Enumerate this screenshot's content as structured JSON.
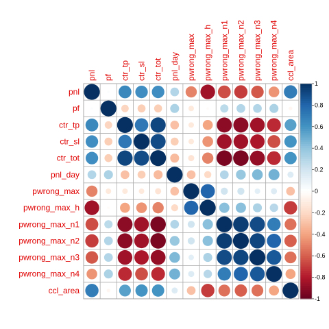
{
  "chart_data": {
    "type": "heatmap",
    "variables": [
      "pnl",
      "pf",
      "ctr_tp",
      "ctr_sl",
      "ctr_tot",
      "pnl_day",
      "pwrong_max",
      "pwrong_max_h",
      "pwrong_max_n1",
      "pwrong_max_n2",
      "pwrong_max_n3",
      "pwrong_max_n4",
      "ccl_area"
    ],
    "matrix": [
      [
        1.0,
        0.02,
        0.65,
        0.62,
        0.62,
        0.3,
        -0.5,
        -0.85,
        -0.65,
        -0.7,
        -0.62,
        -0.45,
        0.7
      ],
      [
        0.02,
        1.0,
        -0.22,
        -0.25,
        -0.25,
        0.32,
        -0.12,
        -0.02,
        0.27,
        0.3,
        0.3,
        0.32,
        -0.05
      ],
      [
        0.65,
        -0.22,
        1.0,
        0.72,
        0.92,
        -0.3,
        -0.12,
        -0.4,
        -0.9,
        -0.9,
        -0.85,
        -0.75,
        0.55
      ],
      [
        0.62,
        -0.25,
        0.72,
        1.0,
        0.9,
        -0.25,
        -0.12,
        -0.45,
        -0.85,
        -0.85,
        -0.82,
        -0.65,
        0.6
      ],
      [
        0.62,
        -0.25,
        0.92,
        0.9,
        1.0,
        -0.32,
        -0.15,
        -0.5,
        -0.95,
        -0.95,
        -0.88,
        -0.75,
        0.6
      ],
      [
        0.3,
        0.32,
        -0.3,
        -0.25,
        -0.32,
        1.0,
        -0.3,
        -0.2,
        0.3,
        0.38,
        0.45,
        0.48,
        0.15
      ],
      [
        -0.5,
        -0.12,
        -0.12,
        -0.12,
        -0.15,
        -0.3,
        1.0,
        0.8,
        0.2,
        0.2,
        0.12,
        0.15,
        -0.3
      ],
      [
        -0.85,
        -0.02,
        -0.4,
        -0.45,
        -0.5,
        -0.2,
        0.8,
        1.0,
        0.42,
        0.42,
        0.32,
        0.28,
        -0.7
      ],
      [
        -0.65,
        0.27,
        -0.9,
        -0.85,
        -0.95,
        0.3,
        0.2,
        0.42,
        1.0,
        0.95,
        0.9,
        0.7,
        -0.55
      ],
      [
        -0.7,
        0.3,
        -0.9,
        -0.85,
        -0.95,
        0.38,
        0.2,
        0.42,
        0.95,
        1.0,
        0.92,
        0.8,
        -0.6
      ],
      [
        -0.62,
        0.3,
        -0.85,
        -0.82,
        -0.88,
        0.45,
        0.12,
        0.32,
        0.9,
        0.92,
        1.0,
        0.85,
        -0.55
      ],
      [
        -0.45,
        0.32,
        -0.75,
        -0.65,
        -0.75,
        0.48,
        0.15,
        0.28,
        0.7,
        0.8,
        0.85,
        1.0,
        -0.4
      ],
      [
        0.7,
        -0.05,
        0.55,
        0.6,
        0.6,
        0.15,
        -0.3,
        -0.7,
        -0.55,
        -0.6,
        -0.55,
        -0.4,
        1.0
      ]
    ],
    "colorbar": {
      "range": [
        -1,
        1
      ],
      "ticks": [
        "1",
        "0.8",
        "0.6",
        "0.4",
        "0.2",
        "0",
        "-0.2",
        "-0.4",
        "-0.6",
        "-0.8",
        "-1"
      ]
    },
    "colors": {
      "label": "#e00000",
      "grid": "#aaaaaa",
      "stops": [
        "#67001f",
        "#b2182b",
        "#d6604d",
        "#f4a582",
        "#fddbc7",
        "#ffffff",
        "#d1e5f0",
        "#92c5de",
        "#4393c3",
        "#2166ac",
        "#053061"
      ]
    }
  }
}
